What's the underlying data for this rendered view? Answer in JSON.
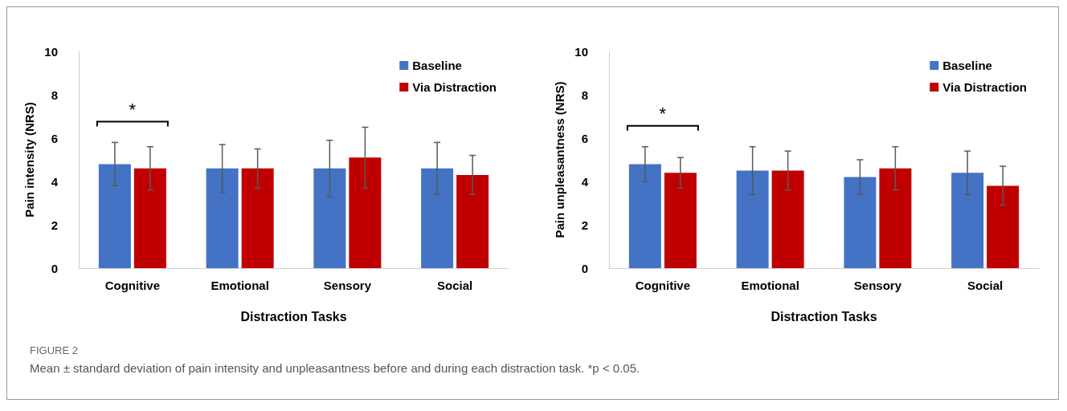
{
  "chart_data": [
    {
      "type": "bar",
      "xlabel": "Distraction Tasks",
      "ylabel": "Pain intensity (NRS)",
      "categories": [
        "Cognitive",
        "Emotional",
        "Sensory",
        "Social"
      ],
      "series": [
        {
          "name": "Baseline",
          "color": "#4472c4",
          "values": [
            4.8,
            4.6,
            4.6,
            4.6
          ],
          "errors": [
            1.0,
            1.1,
            1.3,
            1.2
          ]
        },
        {
          "name": "Via Distraction",
          "color": "#c00000",
          "values": [
            4.6,
            4.6,
            5.1,
            4.3
          ],
          "errors": [
            1.0,
            0.9,
            1.4,
            0.9
          ]
        }
      ],
      "ylim": [
        0,
        10
      ],
      "yticks": [
        0,
        2,
        4,
        6,
        8,
        10
      ],
      "grid": false,
      "legend": "top right",
      "annotations": [
        "*"
      ]
    },
    {
      "type": "bar",
      "xlabel": "Distraction Tasks",
      "ylabel": "Pain unpleasantness (NRS)",
      "categories": [
        "Cognitive",
        "Emotional",
        "Sensory",
        "Social"
      ],
      "series": [
        {
          "name": "Baseline",
          "color": "#4472c4",
          "values": [
            4.8,
            4.5,
            4.2,
            4.4
          ],
          "errors": [
            0.8,
            1.1,
            0.8,
            1.0
          ]
        },
        {
          "name": "Via Distraction",
          "color": "#c00000",
          "values": [
            4.4,
            4.5,
            4.6,
            3.8
          ],
          "errors": [
            0.7,
            0.9,
            1.0,
            0.9
          ]
        }
      ],
      "ylim": [
        0,
        10
      ],
      "yticks": [
        0,
        2,
        4,
        6,
        8,
        10
      ],
      "grid": false,
      "legend": "top right",
      "annotations": [
        "*",
        "FIGURE 2",
        "Mean ± standard deviation of pain intensity and unpleasantness before and during each distraction task. *p < 0.05."
      ]
    }
  ]
}
